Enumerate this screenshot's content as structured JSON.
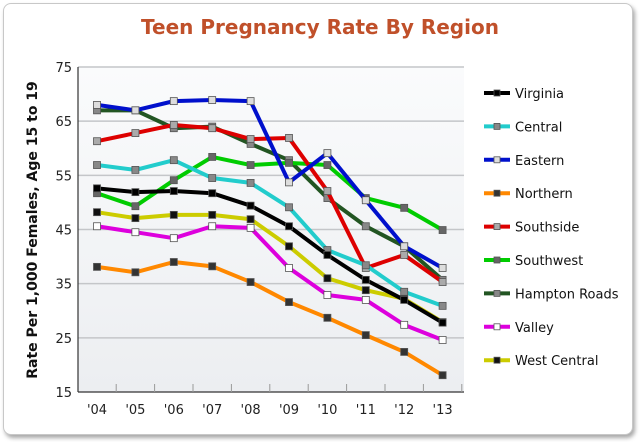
{
  "chart_data": {
    "type": "line",
    "title": "Teen Pregnancy Rate By Region",
    "xlabel": "",
    "ylabel": "Rate Per 1,000 Females, Age 15 to 19",
    "ylim": [
      15,
      75
    ],
    "yticks": [
      15,
      25,
      35,
      45,
      55,
      65,
      75
    ],
    "categories": [
      "'04",
      "'05",
      "'06",
      "'07",
      "'08",
      "'09",
      "'10",
      "'11",
      "'12",
      "'13"
    ],
    "grid": true,
    "legend_position": "right",
    "series": [
      {
        "name": "Virginia",
        "color": "#000000",
        "marker": "#000000",
        "values": [
          52.6,
          51.9,
          52.1,
          51.7,
          49.4,
          45.6,
          40.3,
          35.7,
          32.0,
          27.8
        ]
      },
      {
        "name": "Central",
        "color": "#22cccc",
        "marker": "#888888",
        "values": [
          56.9,
          56.0,
          57.8,
          54.5,
          53.6,
          49.1,
          41.2,
          38.4,
          33.5,
          30.9
        ]
      },
      {
        "name": "Eastern",
        "color": "#0010cc",
        "marker": "#dddddd",
        "values": [
          68.0,
          67.0,
          68.7,
          68.9,
          68.7,
          53.7,
          59.1,
          50.4,
          41.9,
          37.9
        ]
      },
      {
        "name": "Northern",
        "color": "#ff8800",
        "marker": "#333333",
        "values": [
          38.1,
          37.1,
          39.0,
          38.2,
          35.3,
          31.6,
          28.7,
          25.5,
          22.4,
          18.1
        ]
      },
      {
        "name": "Southside",
        "color": "#dd0000",
        "marker": "#aaaaaa",
        "values": [
          61.3,
          62.8,
          64.3,
          63.7,
          61.7,
          61.9,
          52.1,
          37.9,
          40.3,
          35.3
        ]
      },
      {
        "name": "Southwest",
        "color": "#00cc00",
        "marker": "#666666",
        "values": [
          51.7,
          49.3,
          54.1,
          58.4,
          56.9,
          57.3,
          56.9,
          50.8,
          49.0,
          44.9
        ]
      },
      {
        "name": "Hampton Roads",
        "color": "#225522",
        "marker": "#888888",
        "values": [
          67.0,
          67.0,
          63.7,
          64.0,
          60.8,
          57.8,
          50.8,
          45.6,
          41.9,
          35.7
        ]
      },
      {
        "name": "Valley",
        "color": "#dd00dd",
        "marker": "#ffffff",
        "values": [
          45.6,
          44.5,
          43.4,
          45.6,
          45.3,
          37.9,
          32.9,
          32.0,
          27.4,
          24.6
        ]
      },
      {
        "name": "West Central",
        "color": "#cccc00",
        "marker": "#111111",
        "values": [
          48.2,
          47.1,
          47.7,
          47.7,
          46.9,
          41.9,
          36.0,
          33.8,
          32.2,
          27.9
        ]
      }
    ]
  }
}
